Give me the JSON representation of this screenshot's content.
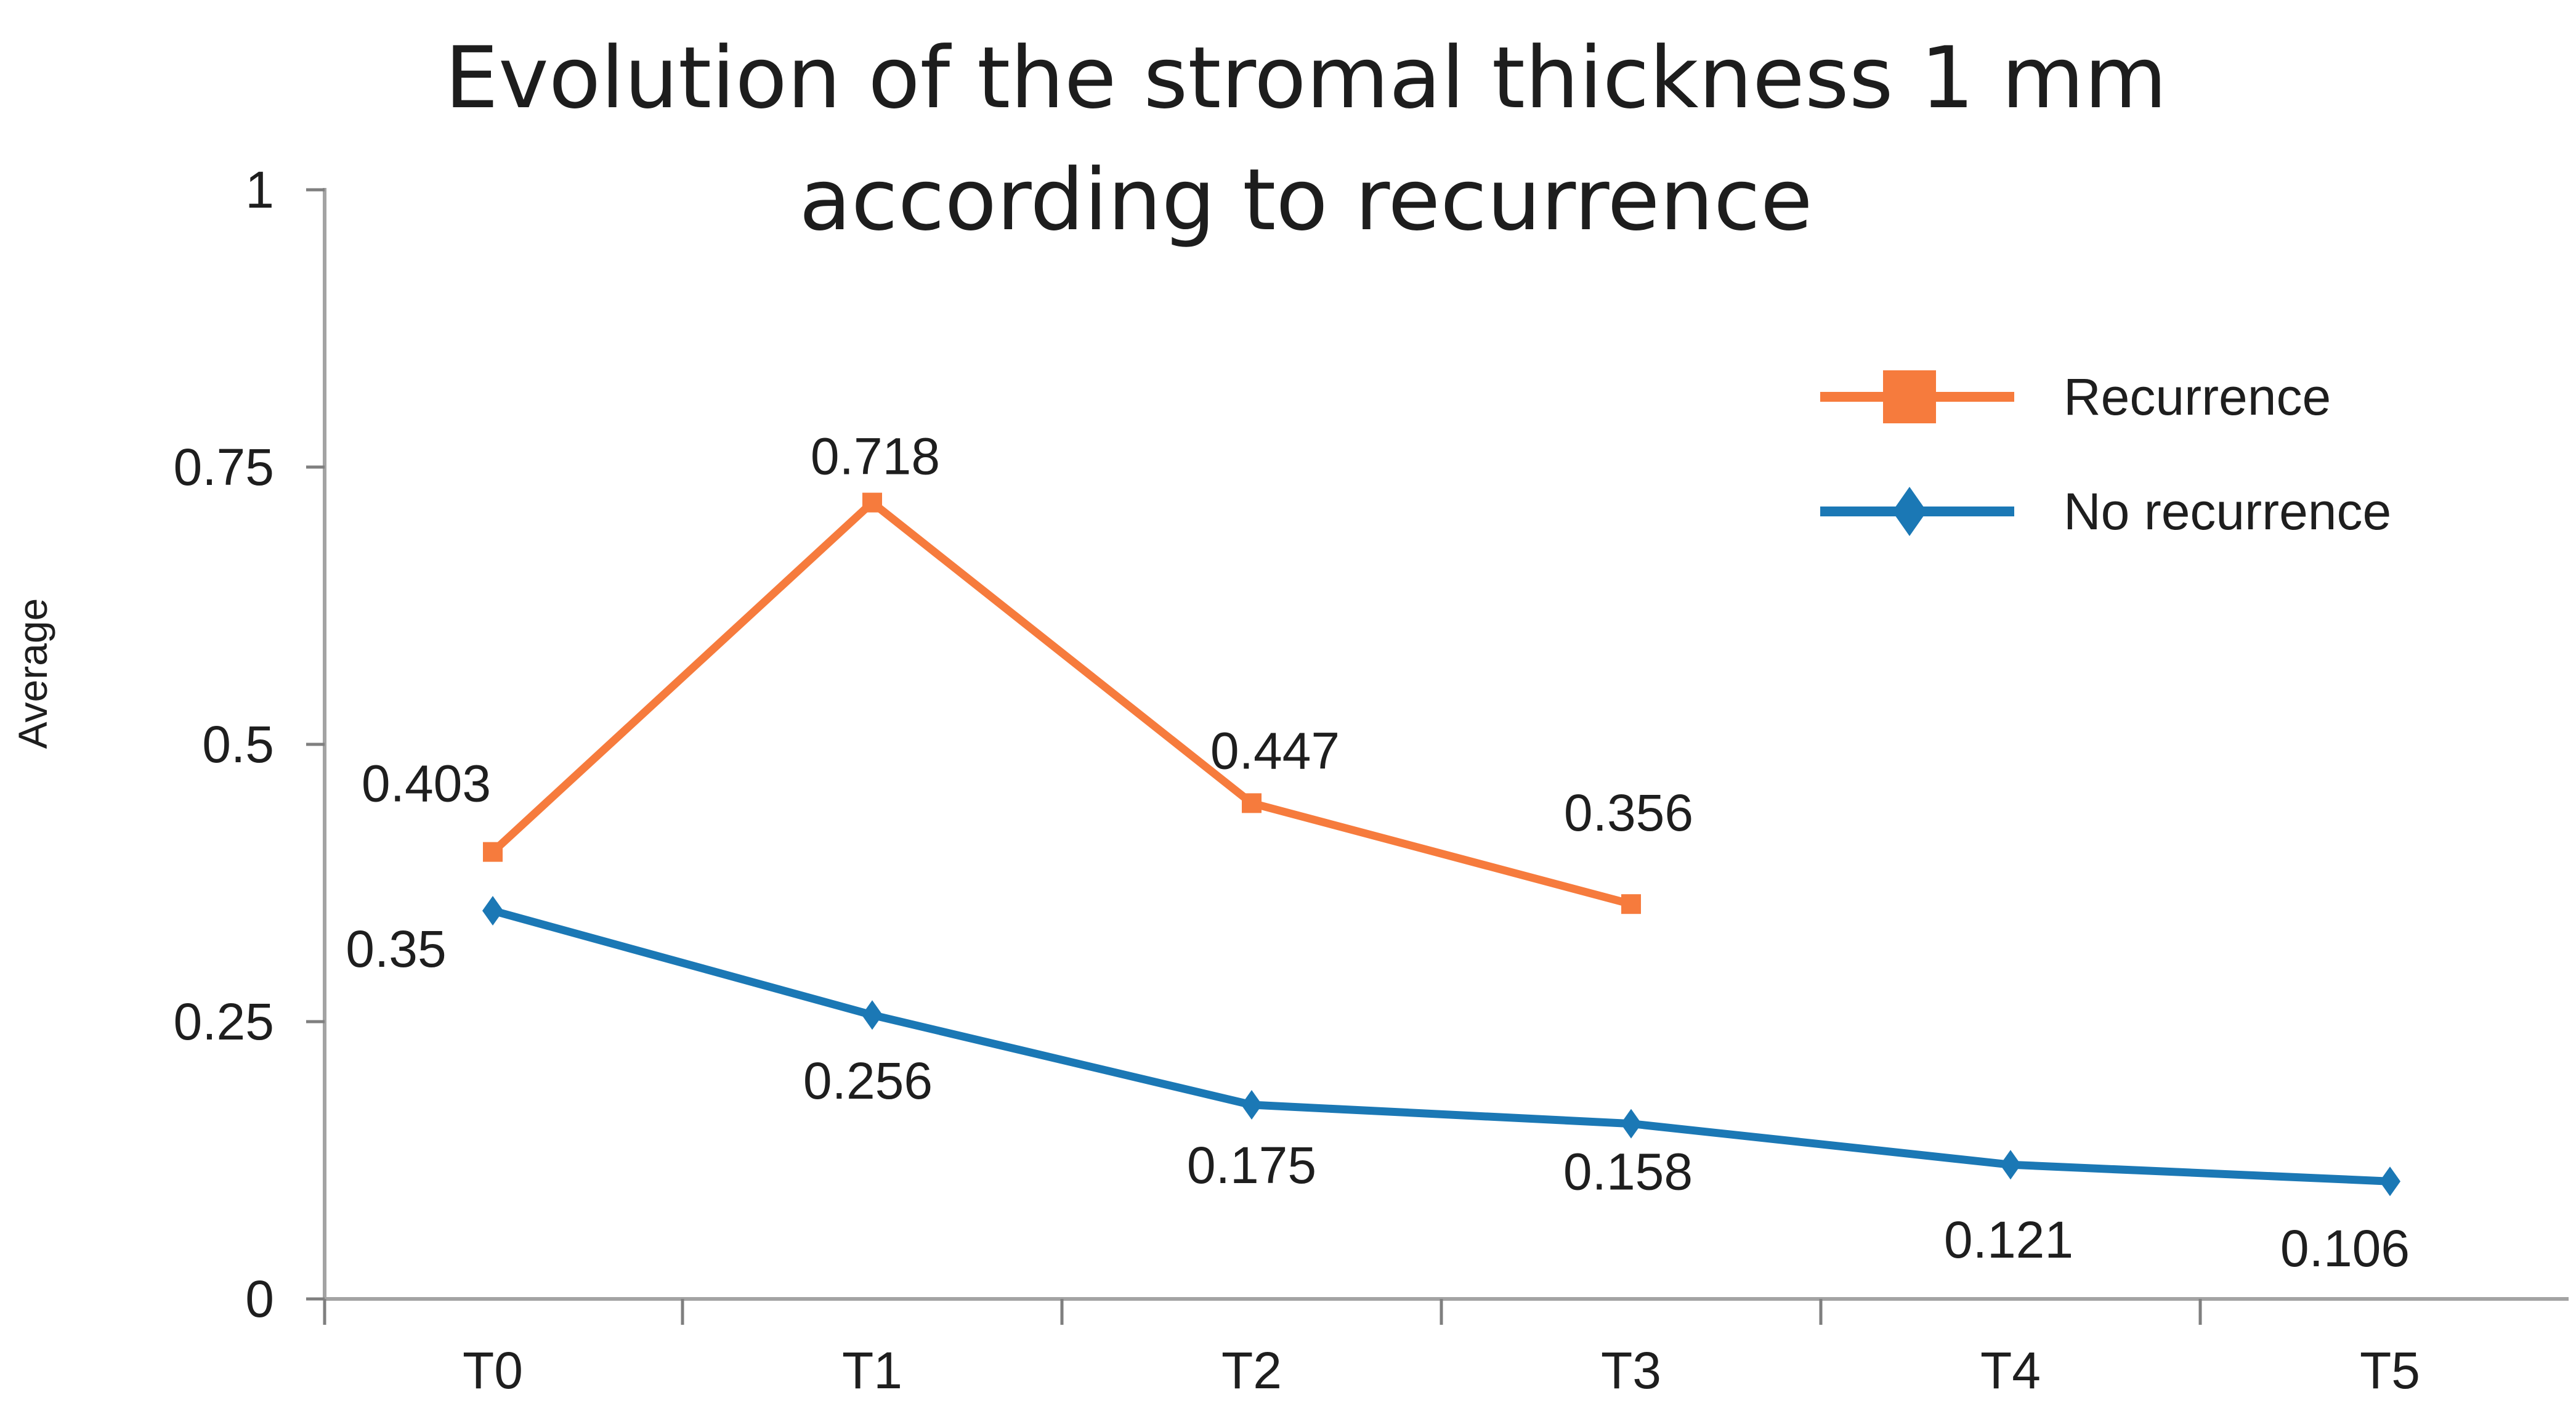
{
  "chart_data": {
    "type": "line",
    "title": "Evolution of the stromal thickness 1 mm according to recurrence",
    "title_lines": [
      "Evolution of the stromal thickness 1 mm",
      "according to recurrence"
    ],
    "xlabel": "",
    "ylabel": "Average",
    "categories": [
      "T0",
      "T1",
      "T2",
      "T3",
      "T4",
      "T5"
    ],
    "y_ticks": [
      "1",
      "0.75",
      "0.5",
      "0.25",
      "0"
    ],
    "ylim": [
      0,
      1
    ],
    "grid": false,
    "legend_position": "inside-upper-right",
    "colors": {
      "recurrence": "#F67B3D",
      "no_recurrence": "#1B78B5",
      "axis_line": "#A3A3A3",
      "tick": "#7F7F7F",
      "text": "#1E1E1E"
    },
    "series": [
      {
        "name": "Recurrence",
        "color": "#F67B3D",
        "marker": "square",
        "values": [
          0.403,
          0.718,
          0.447,
          0.356,
          null,
          null
        ],
        "labels": [
          "0.403",
          "0.718",
          "0.447",
          "0.356"
        ]
      },
      {
        "name": "No recurrence",
        "color": "#1B78B5",
        "marker": "diamond",
        "values": [
          0.35,
          0.256,
          0.175,
          0.158,
          0.121,
          0.106
        ],
        "labels": [
          "0.35",
          "0.256",
          "0.175",
          "0.158",
          "0.121",
          "0.106"
        ]
      }
    ]
  }
}
